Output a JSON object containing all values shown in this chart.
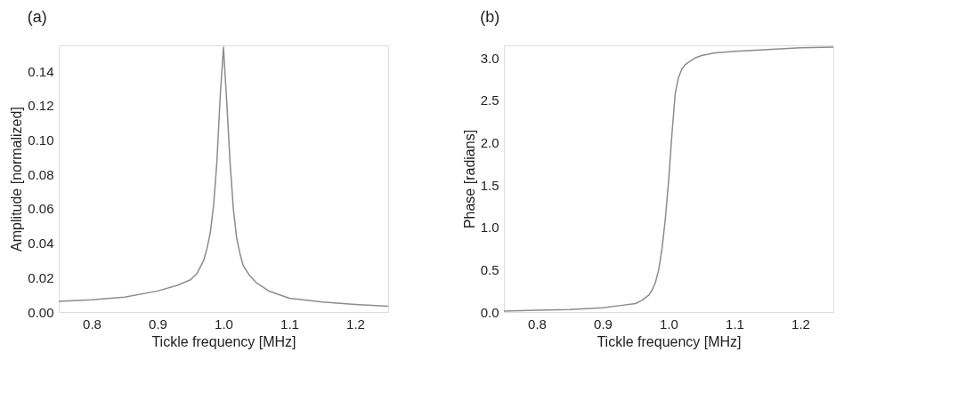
{
  "chart_data": [
    {
      "type": "line",
      "title": "(a)",
      "xlabel": "Tickle frequency   [MHz]",
      "ylabel": "Amplitude   [normalized]",
      "x": [
        0.75,
        0.8,
        0.85,
        0.9,
        0.93,
        0.95,
        0.96,
        0.97,
        0.975,
        0.98,
        0.985,
        0.99,
        0.995,
        1.0,
        1.005,
        1.01,
        1.015,
        1.02,
        1.025,
        1.03,
        1.04,
        1.05,
        1.07,
        1.1,
        1.15,
        1.2,
        1.25
      ],
      "series": [
        {
          "color": "#8c8c8c",
          "values": [
            0.0062,
            0.0071,
            0.0087,
            0.0122,
            0.0155,
            0.0187,
            0.0225,
            0.03,
            0.037,
            0.046,
            0.062,
            0.087,
            0.125,
            0.154,
            0.122,
            0.087,
            0.06,
            0.043,
            0.034,
            0.027,
            0.021,
            0.017,
            0.012,
            0.008,
            0.0058,
            0.0044,
            0.0033
          ]
        }
      ],
      "xlim": [
        0.75,
        1.25
      ],
      "xticks": [
        0.8,
        0.9,
        {
          "value": 1.0,
          "label": "1.0"
        },
        1.1,
        1.2
      ],
      "ylim": [
        0,
        0.155
      ],
      "yticks": [
        {
          "value": 0,
          "label": "0.00"
        },
        0.02,
        0.04,
        0.06,
        0.08,
        {
          "value": 0.1,
          "label": "0.10"
        },
        0.12,
        0.14
      ],
      "grid": false
    },
    {
      "type": "line",
      "title": "(b)",
      "xlabel": "Tickle frequency   [MHz]",
      "ylabel": "Phase   [radians]",
      "x": [
        0.75,
        0.8,
        0.85,
        0.9,
        0.93,
        0.95,
        0.96,
        0.97,
        0.975,
        0.98,
        0.985,
        0.99,
        0.995,
        1.0,
        1.005,
        1.01,
        1.015,
        1.02,
        1.025,
        1.03,
        1.04,
        1.05,
        1.07,
        1.1,
        1.15,
        1.2,
        1.25
      ],
      "series": [
        {
          "color": "#8c8c8c",
          "values": [
            0.01,
            0.02,
            0.03,
            0.05,
            0.08,
            0.1,
            0.14,
            0.2,
            0.26,
            0.35,
            0.5,
            0.75,
            1.1,
            1.55,
            2.1,
            2.58,
            2.77,
            2.87,
            2.92,
            2.95,
            3.0,
            3.03,
            3.06,
            3.08,
            3.1,
            3.12,
            3.13
          ]
        }
      ],
      "xlim": [
        0.75,
        1.25
      ],
      "xticks": [
        0.8,
        0.9,
        {
          "value": 1.0,
          "label": "1.0"
        },
        1.1,
        1.2
      ],
      "ylim": [
        0,
        3.15
      ],
      "yticks": [
        {
          "value": 0,
          "label": "0.0"
        },
        0.5,
        {
          "value": 1,
          "label": "1.0"
        },
        1.5,
        {
          "value": 2,
          "label": "2.0"
        },
        2.5,
        {
          "value": 3,
          "label": "3.0"
        }
      ],
      "grid": false
    }
  ]
}
